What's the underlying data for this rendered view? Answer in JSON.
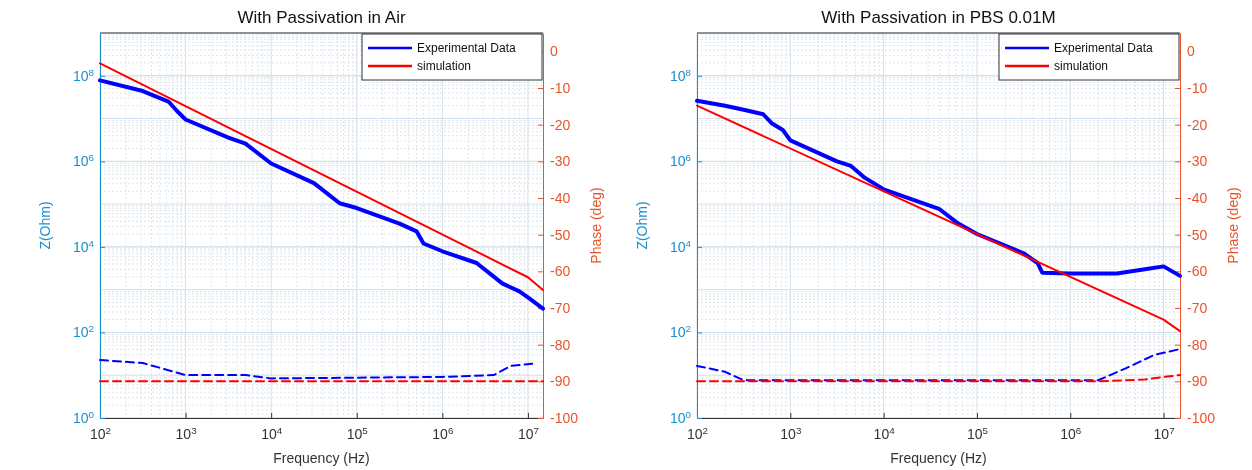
{
  "chart_data": [
    {
      "type": "line",
      "title": "With Passivation in Air",
      "xlabel": "Frequency (Hz)",
      "ylabel": "Z(Ohm)",
      "y2label": "Phase (deg)",
      "log": "xy",
      "grid": true,
      "legend": "top right",
      "xlim": [
        100,
        15000000
      ],
      "xticks": [
        {
          "value": 100,
          "label": "10$^{2}$"
        },
        {
          "value": 1000,
          "label": "10$^{3}$"
        },
        {
          "value": 10000,
          "label": "10$^{4}$"
        },
        {
          "value": 100000,
          "label": "10$^{5}$"
        },
        {
          "value": 1000000,
          "label": "10$^{6}$"
        },
        {
          "value": 10000000,
          "label": "10$^{7}$"
        }
      ],
      "ylim": [
        1,
        1000000000
      ],
      "yticks": [
        {
          "value": 1,
          "label": "10$^{0}$"
        },
        {
          "value": 100,
          "label": "10$^{2}$"
        },
        {
          "value": 10000,
          "label": "10$^{4}$"
        },
        {
          "value": 1000000,
          "label": "10$^{6}$"
        },
        {
          "value": 100000000,
          "label": "10$^{8}$"
        }
      ],
      "y2lim": [
        -100,
        5
      ],
      "y2ticks": [
        -100,
        -90,
        -80,
        -70,
        -60,
        -50,
        -40,
        -30,
        -20,
        -10,
        0
      ],
      "series": [
        {
          "name": "Experimental Data",
          "color": "#0000ff",
          "x": [
            100,
            316,
            631,
            794,
            1000,
            3162,
            5012,
            10000,
            31623,
            63096,
            100000,
            316228,
            501187,
            602560,
            1000000,
            2511886,
            5011872,
            7943282,
            10000000,
            15000000
          ],
          "values": [
            78000000,
            44000000,
            25000000,
            15000000,
            9500000,
            3600000,
            2600000,
            890000,
            310000,
            105000,
            81000,
            35000,
            23000,
            12000,
            7900,
            4200,
            1400,
            910,
            660,
            360
          ]
        },
        {
          "name": "simulation",
          "color": "#ff0000",
          "x": [
            100,
            10000000,
            15000000
          ],
          "values": [
            195000000,
            1950,
            980
          ]
        },
        {
          "color": "#0000ff",
          "axis": "y2",
          "line_style": "dashed",
          "x": [
            100,
            316,
            1000,
            5012,
            10000,
            1000000,
            3981072,
            6309573,
            11220185
          ],
          "values": [
            -84.2,
            -85,
            -88.3,
            -88.3,
            -89.2,
            -88.8,
            -88.3,
            -85.8,
            -85.2
          ]
        },
        {
          "color": "#ff0000",
          "axis": "y2",
          "line_style": "dashed",
          "x": [
            100,
            15000000
          ],
          "values": [
            -90,
            -90
          ]
        }
      ]
    },
    {
      "type": "line",
      "title": "With Passivation in PBS 0.01M",
      "xlabel": "Frequency (Hz)",
      "ylabel": "Z(Ohm)",
      "y2label": "Phase (deg)",
      "log": "xy",
      "grid": true,
      "legend": "top right",
      "xlim": [
        100,
        15000000
      ],
      "xticks": [
        {
          "value": 100,
          "label": "10$^{2}$"
        },
        {
          "value": 1000,
          "label": "10$^{3}$"
        },
        {
          "value": 10000,
          "label": "10$^{4}$"
        },
        {
          "value": 100000,
          "label": "10$^{5}$"
        },
        {
          "value": 1000000,
          "label": "10$^{6}$"
        },
        {
          "value": 10000000,
          "label": "10$^{7}$"
        }
      ],
      "ylim": [
        1,
        1000000000
      ],
      "yticks": [
        {
          "value": 1,
          "label": "10$^{0}$"
        },
        {
          "value": 100,
          "label": "10$^{2}$"
        },
        {
          "value": 10000,
          "label": "10$^{4}$"
        },
        {
          "value": 1000000,
          "label": "10$^{6}$"
        },
        {
          "value": 100000000,
          "label": "10$^{8}$"
        }
      ],
      "y2lim": [
        -100,
        5
      ],
      "y2ticks": [
        -100,
        -90,
        -80,
        -70,
        -60,
        -50,
        -40,
        -30,
        -20,
        -10,
        0
      ],
      "series": [
        {
          "name": "Experimental Data",
          "color": "#0000ff",
          "x": [
            100,
            200,
            316,
            513,
            631,
            832,
            1000,
            3162,
            4467,
            6310,
            8913,
            10000,
            39811,
            63096,
            100000,
            316228,
            446684,
            501187,
            1000000,
            3162278,
            6309573,
            10000000,
            15000000
          ],
          "values": [
            26000000,
            20000000,
            16000000,
            12600000,
            7800000,
            5400000,
            3100000,
            1000000,
            780000,
            410000,
            260000,
            220000,
            76000,
            35000,
            20000,
            7100,
            4200,
            2500,
            2400,
            2400,
            3000,
            3500,
            2100
          ]
        },
        {
          "name": "simulation",
          "color": "#ff0000",
          "x": [
            100,
            10000000,
            15000000
          ],
          "values": [
            20000000,
            200,
            107
          ]
        },
        {
          "color": "#0000ff",
          "axis": "y2",
          "line_style": "dashed",
          "x": [
            100,
            200,
            316,
            1995262,
            3981072,
            7943282,
            15000000
          ],
          "values": [
            -85.8,
            -87.4,
            -89.7,
            -89.7,
            -86.4,
            -82.8,
            -81.2
          ]
        },
        {
          "color": "#ff0000",
          "axis": "y2",
          "line_style": "dashed",
          "x": [
            100,
            1995262,
            6309573,
            10000000,
            15000000
          ],
          "values": [
            -90,
            -90,
            -89.5,
            -88.8,
            -88.3
          ]
        }
      ]
    }
  ]
}
